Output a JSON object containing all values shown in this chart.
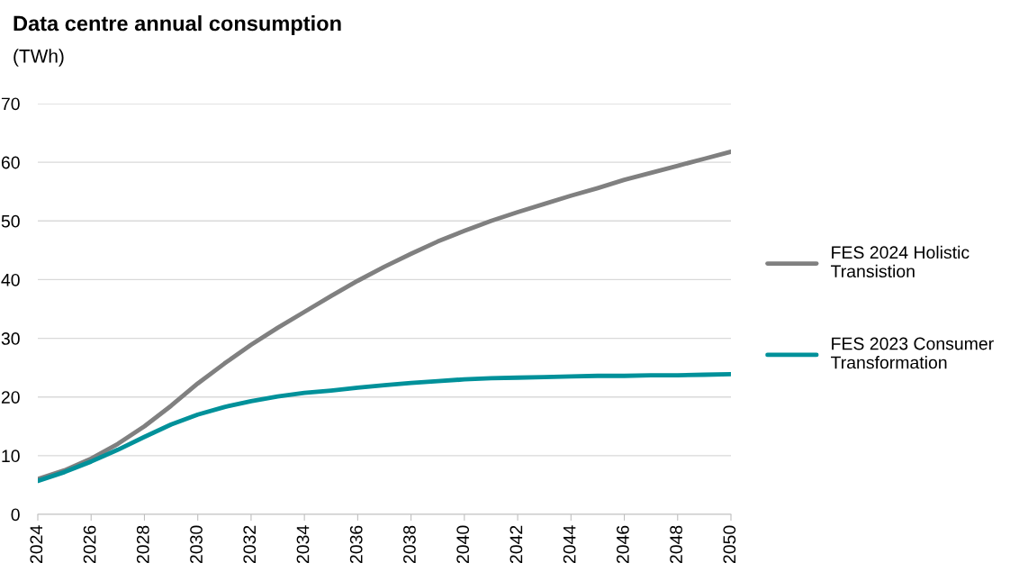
{
  "chart_data": {
    "type": "line",
    "title": "Data centre annual consumption",
    "subtitle": "(TWh)",
    "x": [
      2024,
      2025,
      2026,
      2027,
      2028,
      2029,
      2030,
      2031,
      2032,
      2033,
      2034,
      2035,
      2036,
      2037,
      2038,
      2039,
      2040,
      2041,
      2042,
      2043,
      2044,
      2045,
      2046,
      2047,
      2048,
      2049,
      2050
    ],
    "series": [
      {
        "name": "FES 2024 Holistic\nTransistion",
        "color": "#808080",
        "values": [
          6,
          7.5,
          9.5,
          12,
          15,
          18.5,
          22.3,
          25.7,
          28.9,
          31.8,
          34.5,
          37.2,
          39.8,
          42.2,
          44.4,
          46.5,
          48.3,
          50,
          51.5,
          52.9,
          54.3,
          55.6,
          57,
          58.2,
          59.4,
          60.6,
          61.8
        ]
      },
      {
        "name": "FES 2023 Consumer\nTransformation",
        "color": "#00919a",
        "values": [
          5.7,
          7.2,
          9,
          11,
          13.2,
          15.3,
          17,
          18.3,
          19.3,
          20.1,
          20.7,
          21.1,
          21.6,
          22,
          22.4,
          22.7,
          23,
          23.2,
          23.3,
          23.4,
          23.5,
          23.6,
          23.6,
          23.7,
          23.7,
          23.8,
          23.9
        ]
      }
    ],
    "xlim": [
      2024,
      2050
    ],
    "xticks": [
      2024,
      2026,
      2028,
      2030,
      2032,
      2034,
      2036,
      2038,
      2040,
      2042,
      2044,
      2046,
      2048,
      2050
    ],
    "ylim": [
      0,
      70
    ],
    "yticks": [
      0,
      10,
      20,
      30,
      40,
      50,
      60,
      70
    ],
    "grid": "y",
    "legend": "right",
    "marker": "none",
    "line_style": "solid"
  }
}
